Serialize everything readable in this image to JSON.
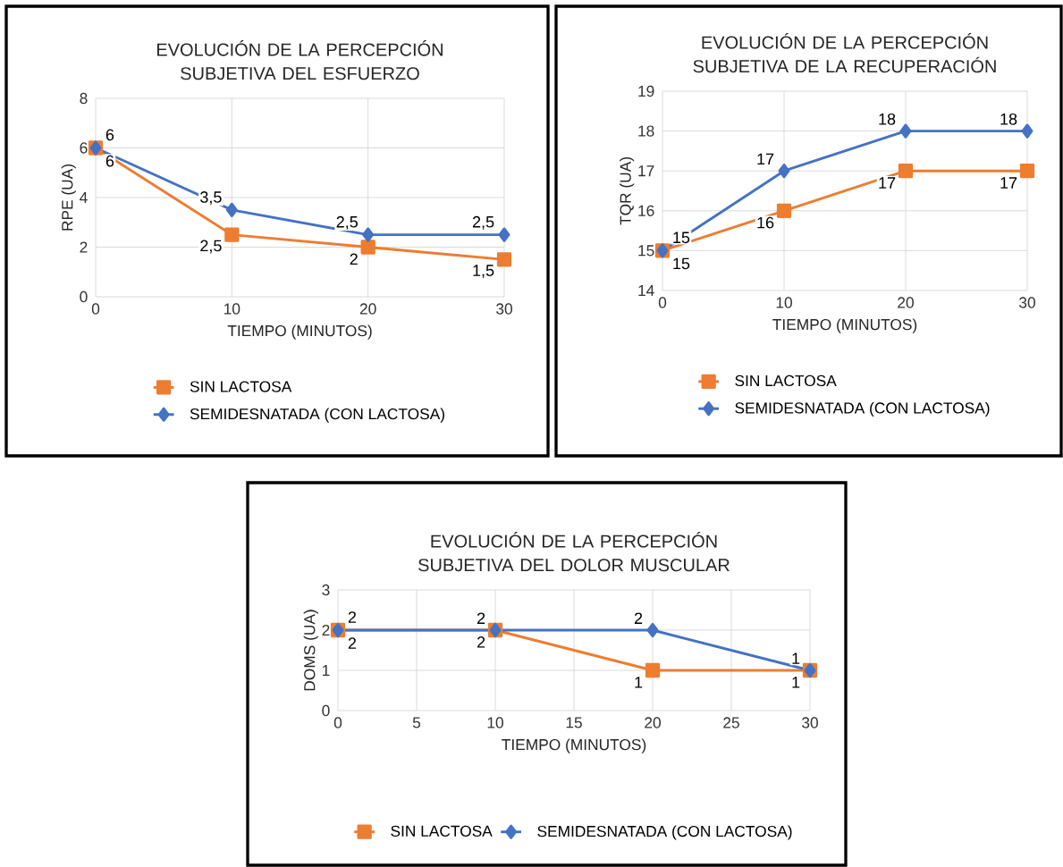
{
  "chart_data": [
    {
      "type": "line",
      "title": "EVOLUCIÓN DE LA PERCEPCIÓN SUBJETIVA DEL ESFUERZO",
      "xlabel": "TIEMPO (MINUTOS)",
      "ylabel": "RPE (UA)",
      "x": [
        0,
        10,
        20,
        30
      ],
      "xlim": [
        0,
        30
      ],
      "xticks": [
        0,
        10,
        20,
        30
      ],
      "ylim": [
        0,
        8
      ],
      "yticks": [
        0,
        2,
        4,
        6,
        8
      ],
      "grid": true,
      "legend": "bottom",
      "series": [
        {
          "name": "SIN LACTOSA",
          "color": "#ed7d31",
          "marker": "square",
          "values": [
            6,
            2.5,
            2,
            1.5
          ],
          "value_labels": [
            "6",
            "2,5",
            "2",
            "1,5"
          ]
        },
        {
          "name": "SEMIDESNATADA (CON LACTOSA)",
          "color": "#4472c4",
          "marker": "diamond",
          "values": [
            6,
            3.5,
            2.5,
            2.5
          ],
          "value_labels": [
            "6",
            "3,5",
            "2,5",
            "2,5"
          ]
        }
      ]
    },
    {
      "type": "line",
      "title": "EVOLUCIÓN DE LA PERCEPCIÓN SUBJETIVA DE LA RECUPERACIÓN",
      "xlabel": "TIEMPO (MINUTOS)",
      "ylabel": "TQR (UA)",
      "x": [
        0,
        10,
        20,
        30
      ],
      "xlim": [
        0,
        30
      ],
      "xticks": [
        0,
        10,
        20,
        30
      ],
      "ylim": [
        14,
        19
      ],
      "yticks": [
        14,
        15,
        16,
        17,
        18,
        19
      ],
      "grid": true,
      "legend": "bottom",
      "series": [
        {
          "name": "SIN LACTOSA",
          "color": "#ed7d31",
          "marker": "square",
          "values": [
            15,
            16,
            17,
            17
          ],
          "value_labels": [
            "15",
            "16",
            "17",
            "17"
          ]
        },
        {
          "name": "SEMIDESNATADA (CON LACTOSA)",
          "color": "#4472c4",
          "marker": "diamond",
          "values": [
            15,
            17,
            18,
            18
          ],
          "value_labels": [
            "15",
            "17",
            "18",
            "18"
          ]
        }
      ]
    },
    {
      "type": "line",
      "title": "EVOLUCIÓN DE LA PERCEPCIÓN SUBJETIVA DEL DOLOR MUSCULAR",
      "xlabel": "TIEMPO (MINUTOS)",
      "ylabel": "DOMS (UA)",
      "x": [
        0,
        10,
        20,
        30
      ],
      "xlim": [
        0,
        30
      ],
      "xticks": [
        0,
        5,
        10,
        15,
        20,
        25,
        30
      ],
      "ylim": [
        0,
        3
      ],
      "yticks": [
        0,
        1,
        2,
        3
      ],
      "grid": true,
      "legend": "bottom",
      "series": [
        {
          "name": "SIN LACTOSA",
          "color": "#ed7d31",
          "marker": "square",
          "values": [
            2,
            2,
            1,
            1
          ],
          "value_labels": [
            "2",
            "2",
            "1",
            "1"
          ]
        },
        {
          "name": "SEMIDESNATADA (CON LACTOSA)",
          "color": "#4472c4",
          "marker": "diamond",
          "values": [
            2,
            2,
            2,
            1
          ],
          "value_labels": [
            "2",
            "2",
            "2",
            "1"
          ]
        }
      ]
    }
  ]
}
